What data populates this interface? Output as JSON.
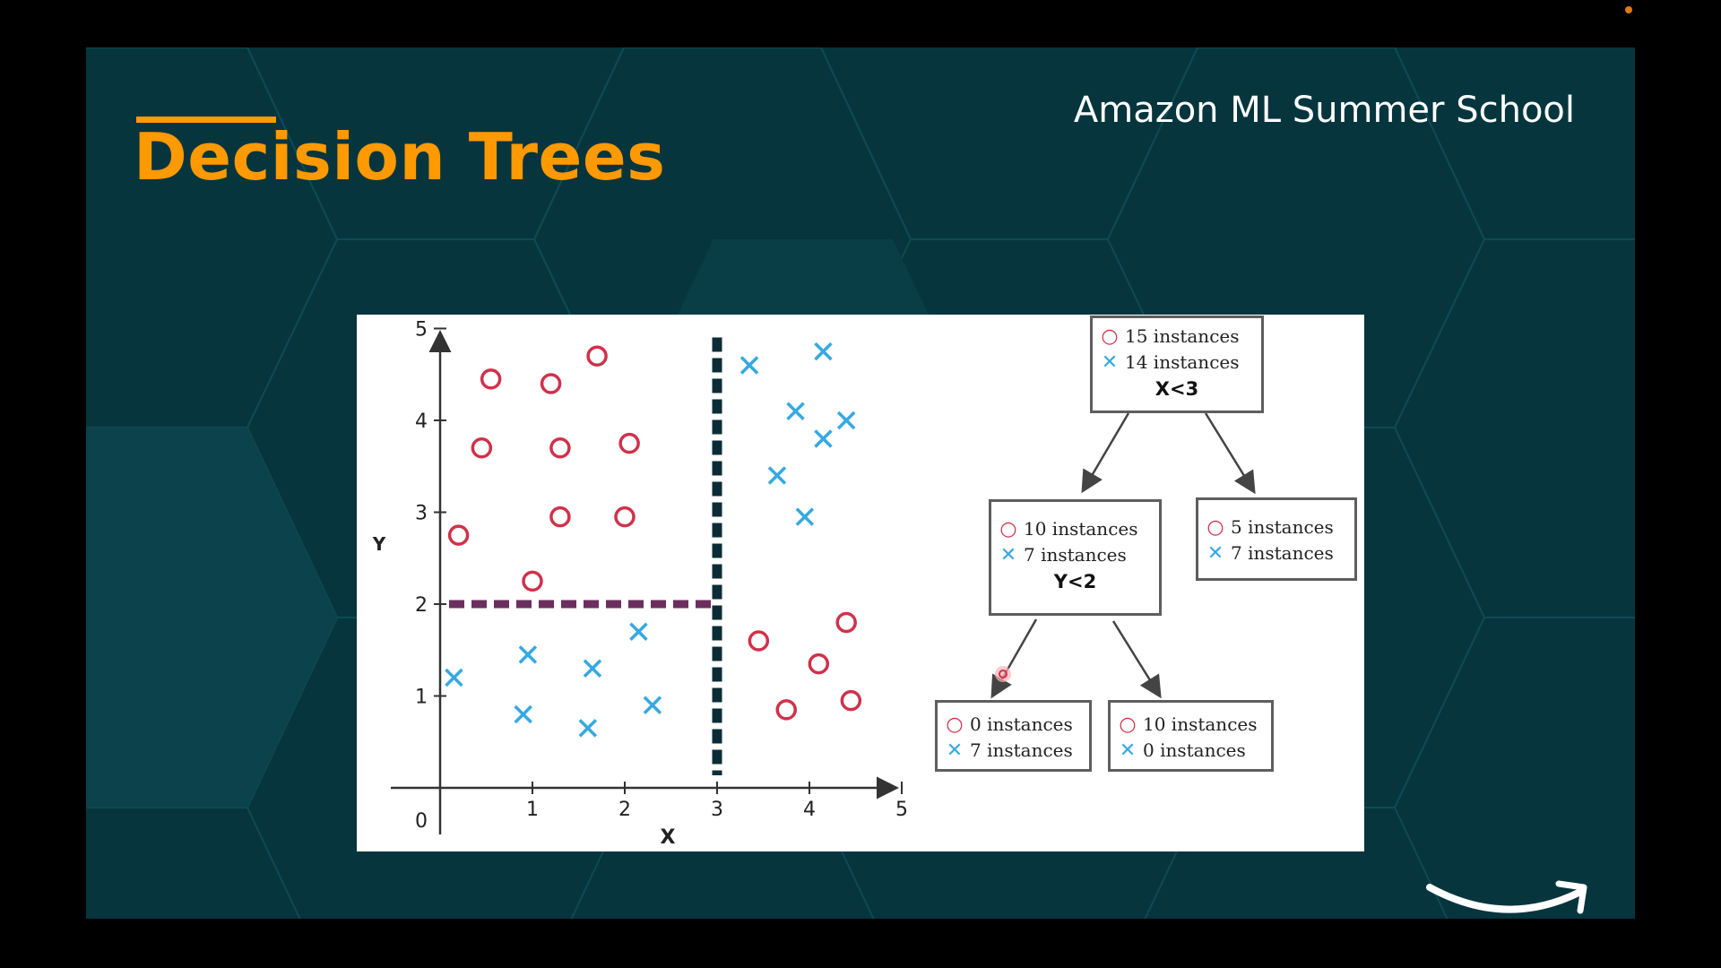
{
  "slide": {
    "title": "Decision Trees",
    "brand": "Amazon ML Summer School",
    "logo_icon": "amazon-smile-arrow",
    "colors": {
      "background": "#06353e",
      "title": "#ff9900",
      "class_o": "#d0314a",
      "class_x": "#35a9e0",
      "split_x": "#0b2c36",
      "split_y": "#6b2f5e"
    }
  },
  "chart_data": {
    "type": "scatter",
    "xlabel": "X",
    "ylabel": "Y",
    "xlim": [
      0,
      5
    ],
    "ylim": [
      0,
      5
    ],
    "x_ticks": [
      "1",
      "2",
      "3",
      "4",
      "5"
    ],
    "y_ticks": [
      "1",
      "2",
      "3",
      "4",
      "5"
    ],
    "origin_label": "0",
    "grid": false,
    "series": [
      {
        "marker": "circle",
        "points": [
          [
            0.2,
            2.75
          ],
          [
            0.45,
            3.7
          ],
          [
            0.55,
            4.45
          ],
          [
            1.0,
            2.25
          ],
          [
            1.2,
            4.4
          ],
          [
            1.3,
            3.7
          ],
          [
            1.3,
            2.95
          ],
          [
            1.7,
            4.7
          ],
          [
            2.0,
            2.95
          ],
          [
            2.05,
            3.75
          ],
          [
            3.45,
            1.6
          ],
          [
            3.75,
            0.85
          ],
          [
            4.1,
            1.35
          ],
          [
            4.4,
            1.8
          ],
          [
            4.45,
            0.95
          ]
        ]
      },
      {
        "marker": "cross",
        "points": [
          [
            0.15,
            1.2
          ],
          [
            0.9,
            0.8
          ],
          [
            0.95,
            1.45
          ],
          [
            1.6,
            0.65
          ],
          [
            1.65,
            1.3
          ],
          [
            2.15,
            1.7
          ],
          [
            2.3,
            0.9
          ],
          [
            3.35,
            4.6
          ],
          [
            3.65,
            3.4
          ],
          [
            3.85,
            4.1
          ],
          [
            3.95,
            2.95
          ],
          [
            4.15,
            4.75
          ],
          [
            4.15,
            3.8
          ],
          [
            4.4,
            4.0
          ]
        ]
      }
    ],
    "splits": [
      {
        "axis": "x",
        "value": 3,
        "from": 0,
        "to": 5
      },
      {
        "axis": "y",
        "value": 2,
        "from": 0,
        "to": 3
      }
    ]
  },
  "tree": {
    "root": {
      "o": "15 instances",
      "x": "14 instances",
      "condition": "X<3"
    },
    "left": {
      "o": "10 instances",
      "x": "7 instances",
      "condition": "Y<2"
    },
    "right": {
      "o": "5 instances",
      "x": "7 instances"
    },
    "left_left": {
      "o": "0 instances",
      "x": "7 instances"
    },
    "left_right": {
      "o": "10 instances",
      "x": "0 instances"
    },
    "symbols": {
      "o": "○",
      "x": "✕"
    }
  }
}
